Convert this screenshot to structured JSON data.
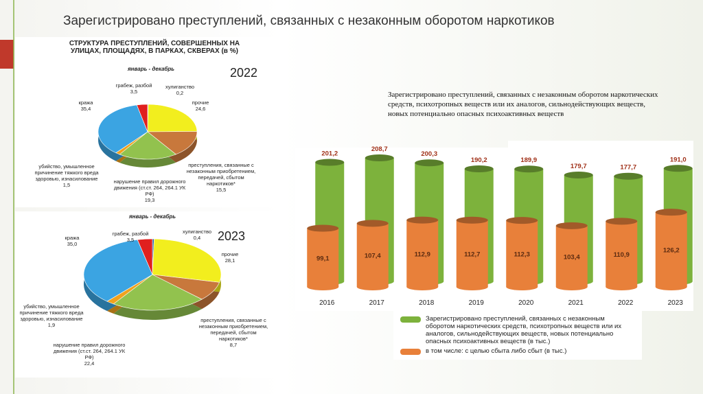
{
  "title": "Зарегистрировано преступлений, связанных с незаконным оборотом наркотиков",
  "description": "Зарегистрировано  преступлений, связанных с незаконным оборотом наркотических средств, психотропных веществ или их аналогов, сильнодействующих веществ, новых потенциально опасных психоактивных веществ",
  "chart_data": [
    {
      "type": "pie",
      "title": "СТРУКТУРА ПРЕСТУПЛЕНИЙ, СОВЕРШЕННЫХ НА УЛИЦАХ, ПЛОЩАДЯХ, В ПАРКАХ, СКВЕРАХ (в %)",
      "subtitle": "январь - декабрь",
      "year_label": "2022",
      "categories": [
        "хулиганство",
        "прочие",
        "преступления, связанные с незаконным приобретением, передачей, сбытом наркотиков*",
        "нарушение правил дорожного движения (ст.ст. 264, 264.1 УК РФ)",
        "убийство, умышленное причинение тяжкого вреда здоровью, изнасилование",
        "кража",
        "грабеж, разбой"
      ],
      "values": [
        0.2,
        24.6,
        15.5,
        19.3,
        1.5,
        35.4,
        3.5
      ],
      "value_labels": [
        "0,2",
        "24,6",
        "15,5",
        "19,3",
        "1,5",
        "35,4",
        "3,5"
      ],
      "colors": [
        "#1f5fb0",
        "#f2ee1e",
        "#c8783c",
        "#92c24e",
        "#f0a21e",
        "#3ba4e2",
        "#e0201e"
      ]
    },
    {
      "type": "pie",
      "subtitle": "январь - декабрь",
      "year_label": "2023",
      "categories": [
        "хулиганство",
        "прочие",
        "преступления, связанные с незаконным приобретением, передачей, сбытом наркотиков*",
        "нарушение правил дорожного движения (ст.ст. 264, 264.1 УК РФ)",
        "убийство, умышленное причинение тяжкого вреда здоровью, изнасилование",
        "кража",
        "грабеж, разбой"
      ],
      "values": [
        0.4,
        28.1,
        8.7,
        22.4,
        1.9,
        35.0,
        3.5
      ],
      "value_labels": [
        "0,4",
        "28,1",
        "8,7",
        "22,4",
        "1,9",
        "35,0",
        "3,5"
      ],
      "colors": [
        "#1f5fb0",
        "#f2ee1e",
        "#c8783c",
        "#92c24e",
        "#f0a21e",
        "#3ba4e2",
        "#e0201e"
      ]
    },
    {
      "type": "bar",
      "categories": [
        "2016",
        "2017",
        "2018",
        "2019",
        "2020",
        "2021",
        "2022",
        "2023"
      ],
      "series": [
        {
          "name": "Зарегистрировано преступлений, связанных с незаконным оборотом наркотических средств, психотропных веществ или их аналогов, сильнодействующих веществ, новых потенциально опасных психоактивных веществ (в тыс.)",
          "color": "#7db23c",
          "values": [
            201.2,
            208.7,
            200.3,
            190.2,
            189.9,
            179.7,
            177.7,
            191.0
          ],
          "value_labels": [
            "201,2",
            "208,7",
            "200,3",
            "190,2",
            "189,9",
            "179,7",
            "177,7",
            "191,0"
          ]
        },
        {
          "name": "в том числе: с целью сбыта либо сбыт (в тыс.)",
          "color": "#e8803a",
          "values": [
            99.1,
            107.4,
            112.9,
            112.7,
            112.3,
            103.4,
            110.9,
            126.2
          ],
          "value_labels": [
            "99,1",
            "107,4",
            "112,9",
            "112,7",
            "112,3",
            "103,4",
            "110,9",
            "126,2"
          ]
        }
      ]
    }
  ]
}
